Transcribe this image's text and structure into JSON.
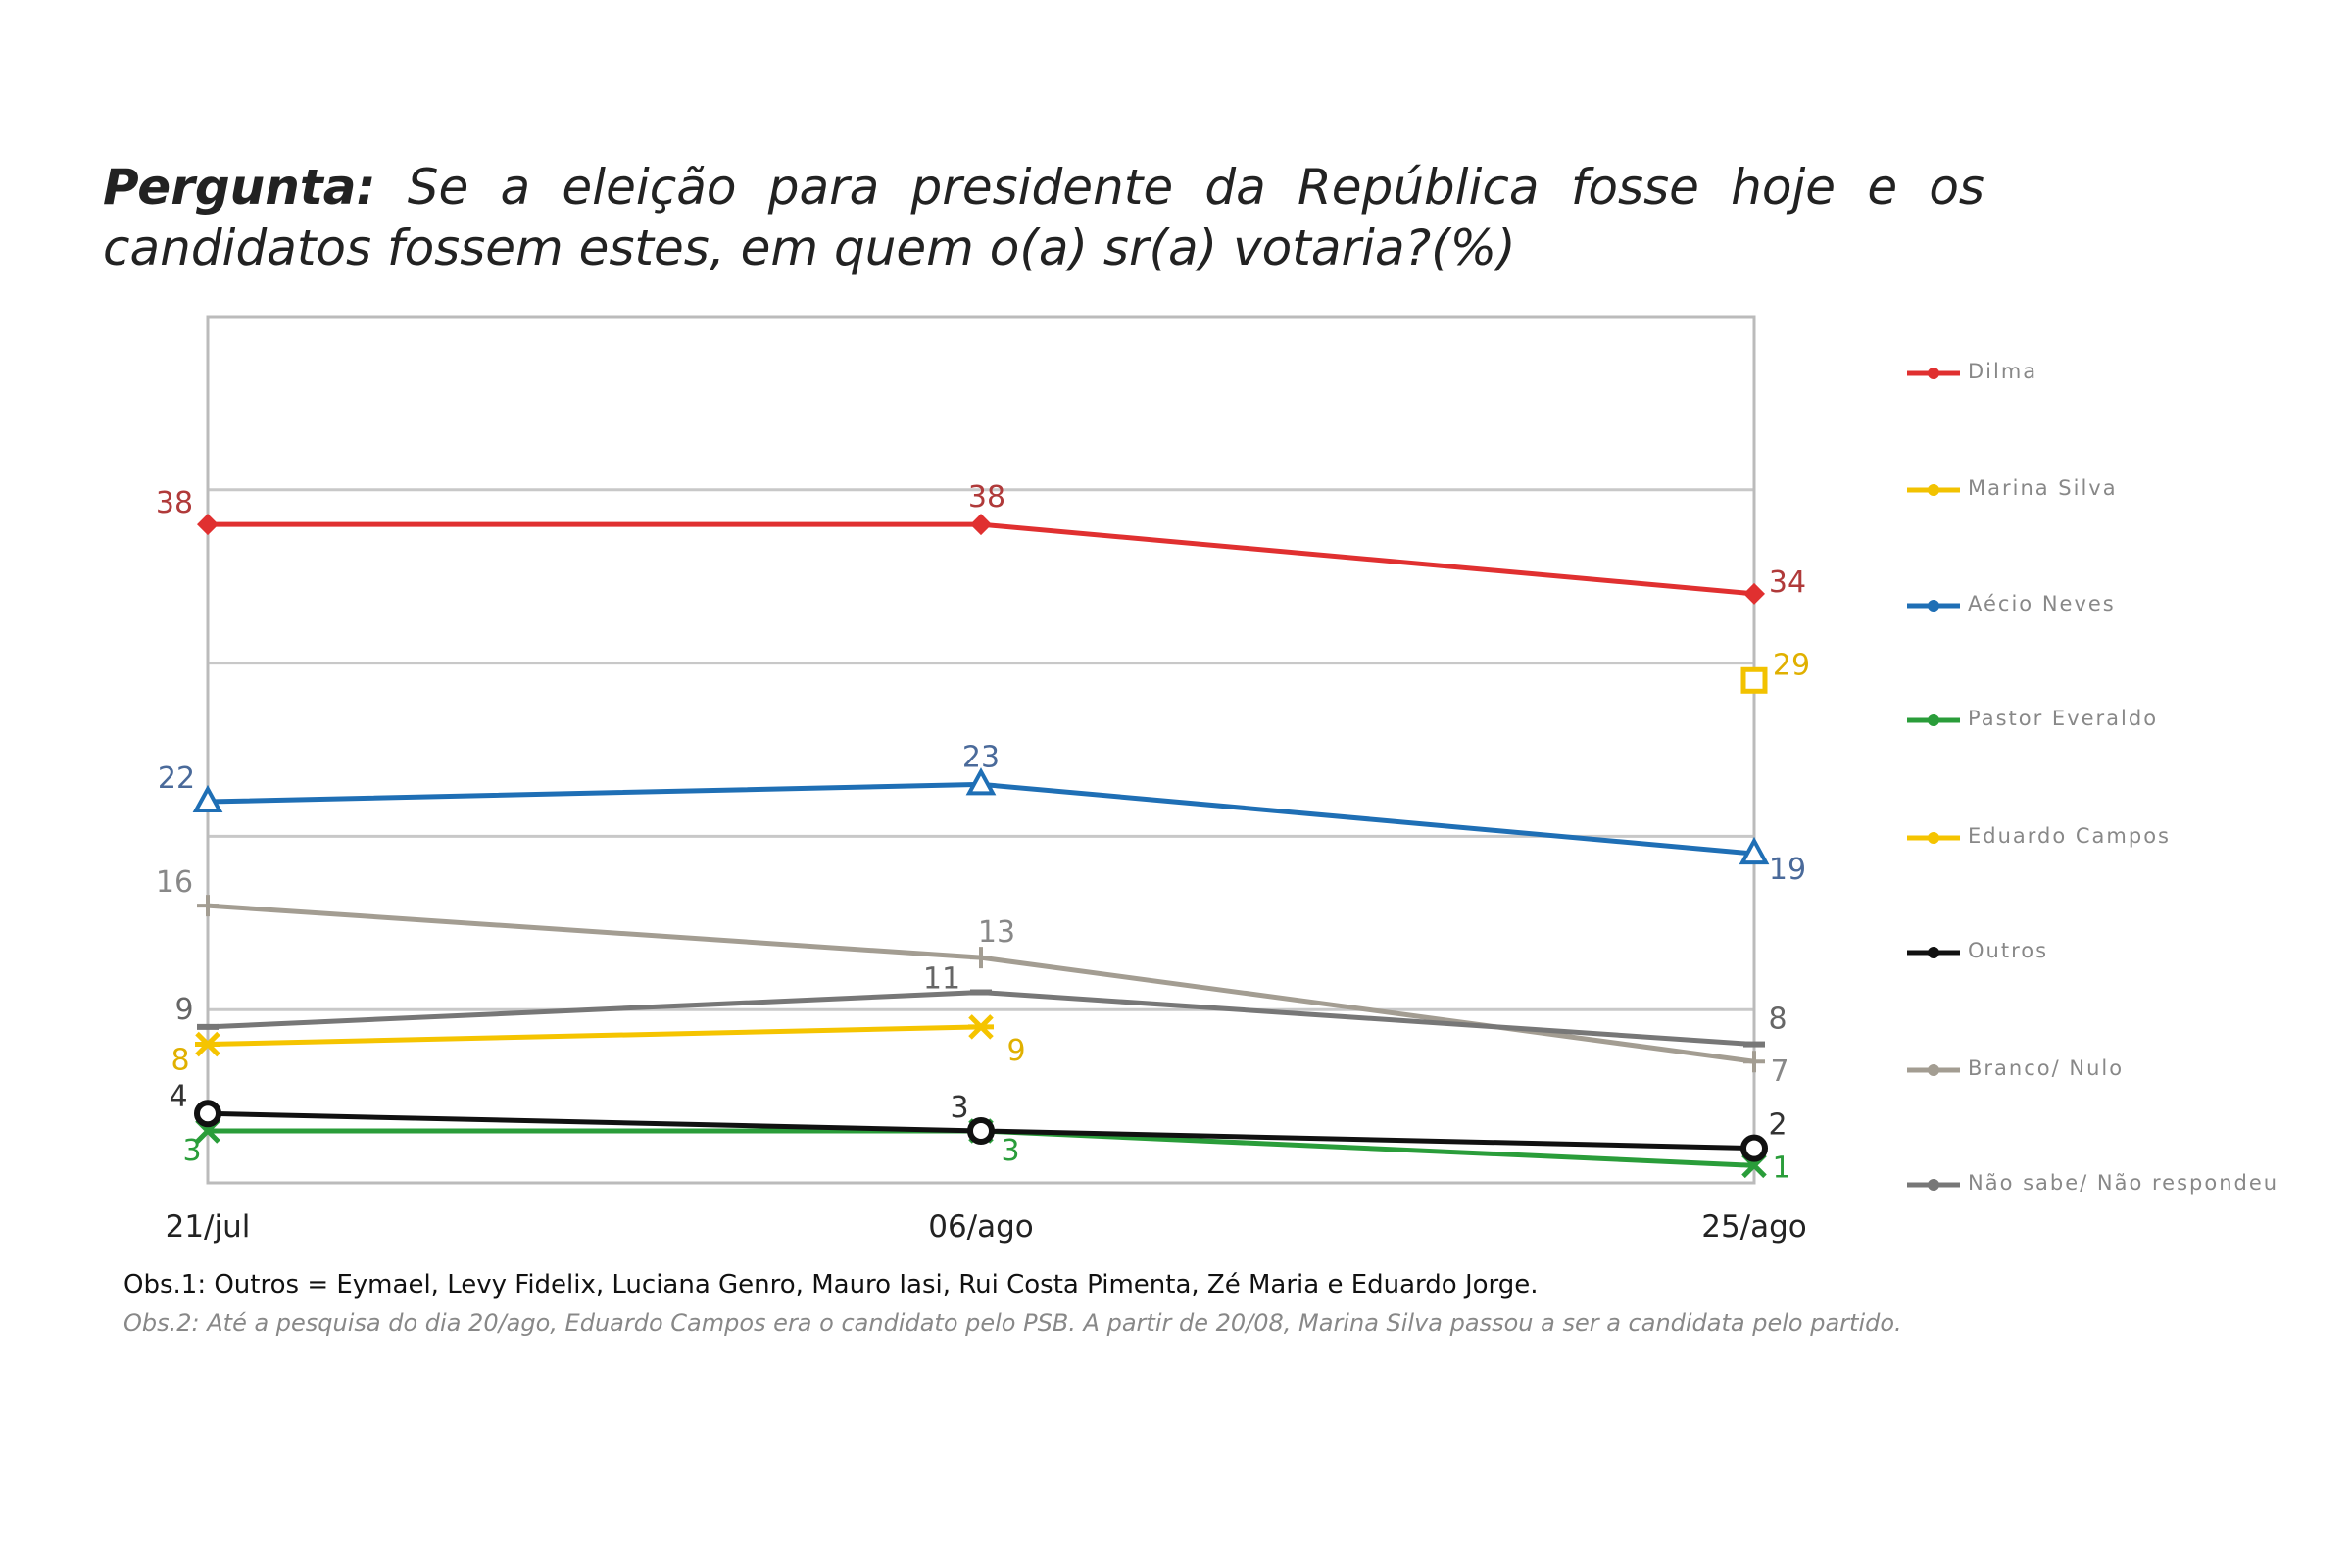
{
  "title": {
    "lead": "Pergunta:",
    "text": "Se a eleição para presidente da República fosse hoje e os candidatos fossem estes, em quem o(a) sr(a) votaria?(%)"
  },
  "notes": {
    "obs1": "Obs.1: Outros = Eymael, Levy Fidelix, Luciana Genro, Mauro Iasi, Rui Costa Pimenta, Zé Maria e Eduardo Jorge.",
    "obs2": "Obs.2: Até a pesquisa do dia 20/ago, Eduardo Campos era o candidato pelo PSB. A partir de 20/08, Marina Silva passou a ser a candidata pelo partido."
  },
  "chart_data": {
    "type": "line",
    "title": "Pergunta: Se a eleição para presidente da República fosse hoje e os candidatos fossem estes, em quem o(a) sr(a) votaria?(%)",
    "categories": [
      "21/jul",
      "06/ago",
      "25/ago"
    ],
    "ylim": [
      0,
      50
    ],
    "grid": true,
    "legend": "right",
    "series": [
      {
        "name": "Dilma",
        "values": [
          38,
          38,
          34
        ],
        "color": "#e03030",
        "label_color": "#b03a3a",
        "marker": "diamond"
      },
      {
        "name": "Marina Silva",
        "values": [
          null,
          null,
          29
        ],
        "color": "#f2c200",
        "label_color": "#e0b000",
        "marker": "square"
      },
      {
        "name": "Aécio Neves",
        "values": [
          22,
          23,
          19
        ],
        "color": "#1f6fb5",
        "label_color": "#4a6a9a",
        "marker": "triangle"
      },
      {
        "name": "Pastor Everaldo",
        "values": [
          3,
          3,
          1
        ],
        "color": "#2a9d3a",
        "label_color": "#2a9d3a",
        "marker": "x"
      },
      {
        "name": "Eduardo Campos",
        "values": [
          8,
          9,
          null
        ],
        "color": "#f5c400",
        "label_color": "#e0b000",
        "marker": "star"
      },
      {
        "name": "Outros",
        "values": [
          4,
          3,
          2
        ],
        "color": "#111111",
        "label_color": "#333333",
        "marker": "circle"
      },
      {
        "name": "Branco/ Nulo",
        "values": [
          16,
          13,
          7
        ],
        "color": "#a39d92",
        "label_color": "#888888",
        "marker": "plus"
      },
      {
        "name": "Não sabe/ Não respondeu",
        "values": [
          9,
          11,
          8
        ],
        "color": "#777777",
        "label_color": "#666666",
        "marker": "dash"
      }
    ]
  }
}
